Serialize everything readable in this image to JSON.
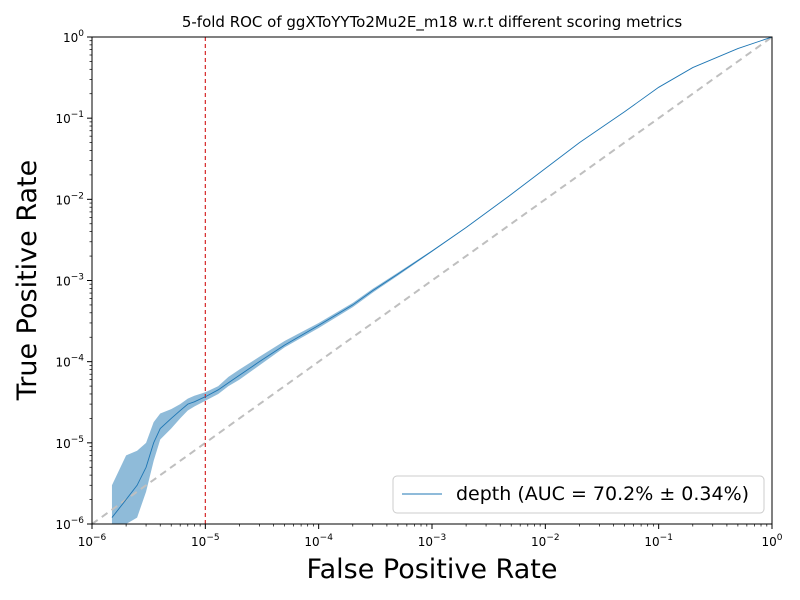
{
  "chart_data": {
    "type": "line",
    "title": "5-fold ROC of ggXToYYTo2Mu2E_m18 w.r.t different scoring metrics",
    "xlabel": "False Positive Rate",
    "ylabel": "True Positive Rate",
    "xscale": "log",
    "yscale": "log",
    "xlim": [
      1e-06,
      1
    ],
    "ylim": [
      1e-06,
      1
    ],
    "xticks": [
      {
        "value": 1e-06,
        "base": "10",
        "exp": "−6"
      },
      {
        "value": 1e-05,
        "base": "10",
        "exp": "−5"
      },
      {
        "value": 0.0001,
        "base": "10",
        "exp": "−4"
      },
      {
        "value": 0.001,
        "base": "10",
        "exp": "−3"
      },
      {
        "value": 0.01,
        "base": "10",
        "exp": "−2"
      },
      {
        "value": 0.1,
        "base": "10",
        "exp": "−1"
      },
      {
        "value": 1,
        "base": "10",
        "exp": "0"
      }
    ],
    "yticks": [
      {
        "value": 1e-06,
        "base": "10",
        "exp": "−6"
      },
      {
        "value": 1e-05,
        "base": "10",
        "exp": "−5"
      },
      {
        "value": 0.0001,
        "base": "10",
        "exp": "−4"
      },
      {
        "value": 0.001,
        "base": "10",
        "exp": "−3"
      },
      {
        "value": 0.01,
        "base": "10",
        "exp": "−2"
      },
      {
        "value": 0.1,
        "base": "10",
        "exp": "−1"
      },
      {
        "value": 1,
        "base": "10",
        "exp": "0"
      }
    ],
    "grid": false,
    "legend_position": "bottom-right",
    "series": [
      {
        "name": "depth (AUC = 70.2% ± 0.34%)",
        "color": "#1f77b4",
        "band_color": "#1f77b4",
        "x": [
          1.5e-06,
          2e-06,
          2.5e-06,
          3e-06,
          3.5e-06,
          4e-06,
          5e-06,
          6e-06,
          7e-06,
          8e-06,
          1e-05,
          1.3e-05,
          1.6e-05,
          2e-05,
          3e-05,
          5e-05,
          0.0001,
          0.0002,
          0.0003,
          0.0005,
          0.001,
          0.002,
          0.005,
          0.01,
          0.02,
          0.05,
          0.1,
          0.2,
          0.5,
          1.0
        ],
        "y": [
          1.2e-06,
          2e-06,
          3e-06,
          5e-06,
          1e-05,
          1.5e-05,
          2e-05,
          2.5e-05,
          3e-05,
          3.2e-05,
          3.7e-05,
          4.5e-05,
          5.5e-05,
          6.8e-05,
          0.0001,
          0.00016,
          0.00028,
          0.0005,
          0.00075,
          0.0012,
          0.0023,
          0.0045,
          0.0115,
          0.024,
          0.05,
          0.12,
          0.24,
          0.42,
          0.72,
          1.0
        ],
        "y_low": [
          1e-06,
          1e-06,
          1.2e-06,
          2.5e-06,
          6e-06,
          1.1e-05,
          1.5e-05,
          2e-05,
          2.5e-05,
          2.8e-05,
          3.3e-05,
          4e-05,
          5e-05,
          6e-05,
          9e-05,
          0.00015,
          0.00026,
          0.00047,
          0.00071,
          0.00115,
          0.00225,
          0.00445,
          0.0114,
          0.0239,
          0.0498,
          0.12,
          0.24,
          0.42,
          0.72,
          1.0
        ],
        "y_high": [
          3e-06,
          7e-06,
          8e-06,
          1e-05,
          1.8e-05,
          2.3e-05,
          2.6e-05,
          3e-05,
          3.5e-05,
          3.8e-05,
          4.2e-05,
          5e-05,
          6.5e-05,
          8e-05,
          0.000115,
          0.00018,
          0.0003,
          0.00053,
          0.00079,
          0.00125,
          0.00235,
          0.00455,
          0.0116,
          0.0241,
          0.0502,
          0.12,
          0.24,
          0.42,
          0.72,
          1.0
        ]
      }
    ],
    "reference_line": {
      "type": "diagonal",
      "color": "#bfbfbf",
      "style": "dashed"
    },
    "vline": {
      "x": 1e-05,
      "color": "#d62728",
      "style": "dashed"
    }
  }
}
